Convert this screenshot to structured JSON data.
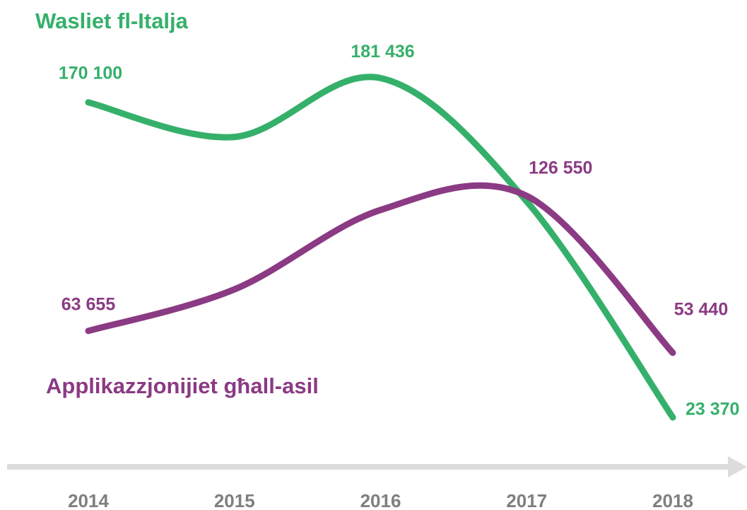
{
  "chart_data": {
    "type": "line",
    "x": [
      2014,
      2015,
      2016,
      2017,
      2018
    ],
    "xlim": [
      2014,
      2018
    ],
    "ylim": [
      0,
      200000
    ],
    "series": [
      {
        "name": "Wasliet fl-Italja",
        "color": "#35b06a",
        "values": [
          170100,
          154000,
          181436,
          124000,
          23370
        ],
        "value_labels": [
          "170 100",
          null,
          "181 436",
          null,
          "23 370"
        ]
      },
      {
        "name": "Applikazzjonijiet għall-asil",
        "color": "#8b3a84",
        "values": [
          63655,
          83000,
          120000,
          126550,
          53440
        ],
        "value_labels": [
          "63 655",
          null,
          null,
          "126 550",
          "53 440"
        ]
      }
    ]
  }
}
